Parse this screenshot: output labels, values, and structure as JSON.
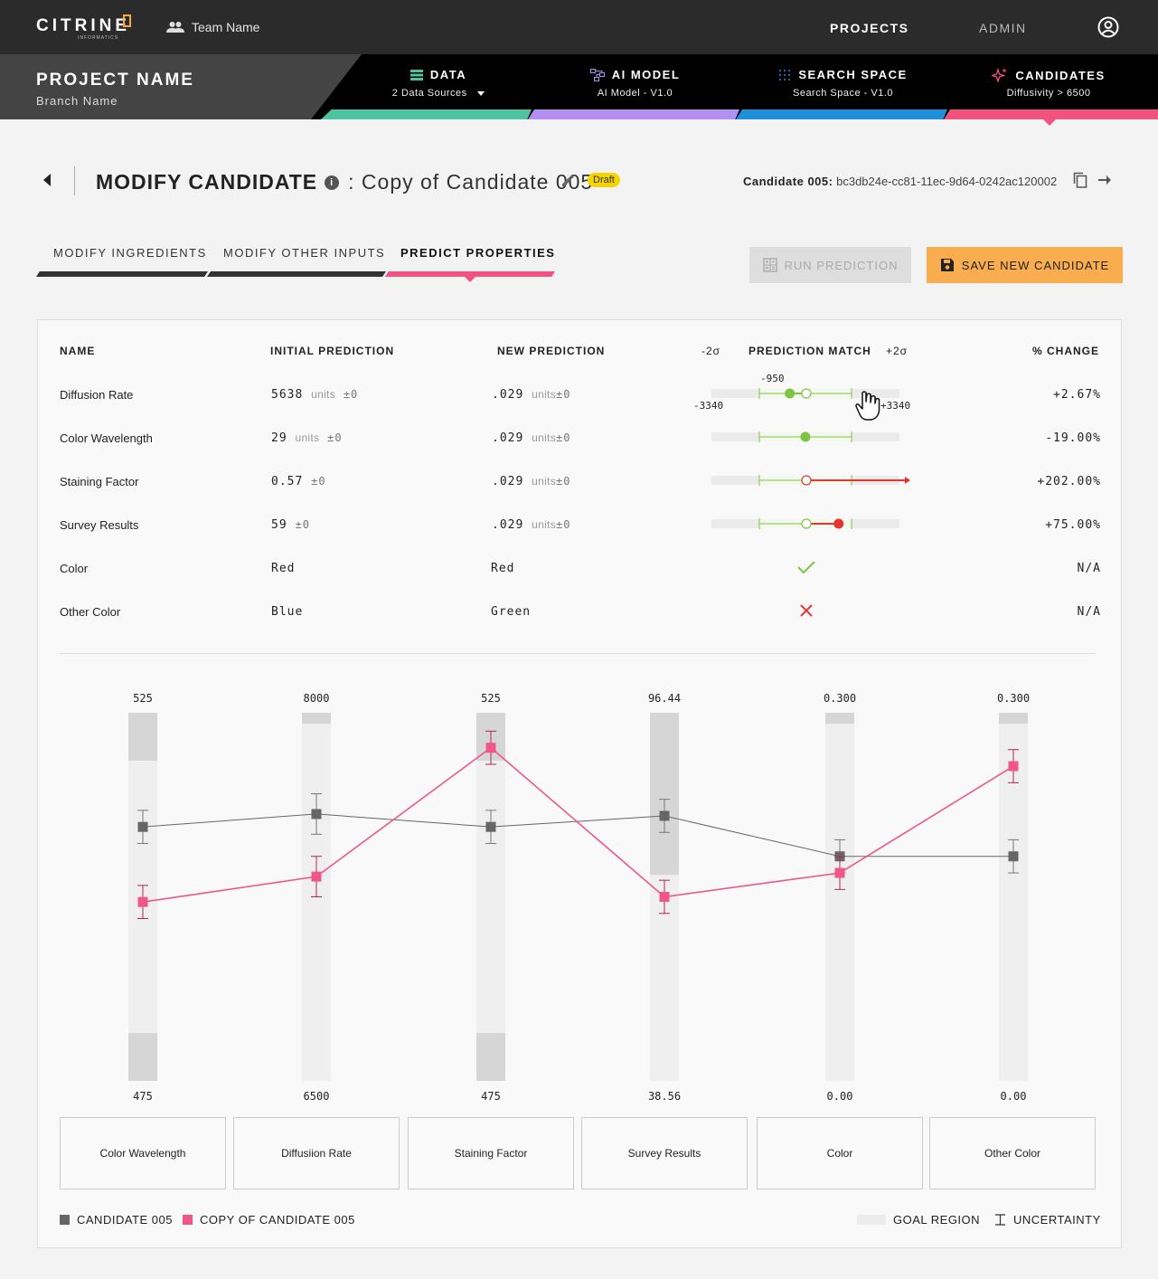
{
  "topbar": {
    "logo": "CITRINE",
    "logo_sub": "INFORMATICS",
    "team": "Team Name",
    "nav_projects": "PROJECTS",
    "nav_admin": "ADMIN",
    "icons": {
      "team": "team-icon",
      "user": "user-icon"
    }
  },
  "project": {
    "name": "PROJECT NAME",
    "branch": "Branch Name"
  },
  "stages": [
    {
      "title": "DATA",
      "subtitle": "2 Data Sources",
      "color": "#4fc3a1",
      "icon": "data-icon"
    },
    {
      "title": "AI MODEL",
      "subtitle": "AI Model - V1.0",
      "color": "#b28ff2",
      "icon": "model-icon"
    },
    {
      "title": "SEARCH SPACE",
      "subtitle": "Search Space - V1.0",
      "color": "#1e90d8",
      "icon": "grid-icon"
    },
    {
      "title": "CANDIDATES",
      "subtitle": "Diffusivity > 6500",
      "color": "#f0537f",
      "icon": "sparkle-icon"
    }
  ],
  "header": {
    "title": "MODIFY CANDIDATE",
    "subtitle": ": Copy of Candidate 005",
    "badge": "Draft",
    "candidate_label": "Candidate 005:",
    "candidate_id": "bc3db24e-cc81-11ec-9d64-0242ac120002"
  },
  "tabs": [
    "MODIFY INGREDIENTS",
    "MODIFY OTHER INPUTS",
    "PREDICT PROPERTIES"
  ],
  "buttons": {
    "run": "RUN PREDICTION",
    "save": "SAVE NEW CANDIDATE"
  },
  "table": {
    "headers": {
      "name": "NAME",
      "initial": "INITIAL PREDICTION",
      "new": "NEW PREDICTION",
      "minus": "-2σ",
      "match": "PREDICTION MATCH",
      "plus": "+2σ",
      "change": "% CHANGE"
    },
    "hover_labels": {
      "mid": "-950",
      "left": "-3340",
      "right": "+3340"
    },
    "rows": [
      {
        "name": "Diffusion Rate",
        "initial": "5638",
        "initial_unit": "units",
        "initial_pm": "±0",
        "new": ".029",
        "new_unit": "units",
        "new_pm": "±0",
        "change": "+2.67%",
        "match": "within",
        "marker": 0.33
      },
      {
        "name": "Color Wavelength",
        "initial": "29",
        "initial_unit": "units",
        "initial_pm": "±0",
        "new": ".029",
        "new_unit": "units",
        "new_pm": "±0",
        "change": "-19.00%",
        "match": "within",
        "marker": 0.5
      },
      {
        "name": "Staining Factor",
        "initial": "0.57",
        "initial_unit": "",
        "initial_pm": "±0",
        "new": ".029",
        "new_unit": "units",
        "new_pm": "±0",
        "change": "+202.00%",
        "match": "over",
        "marker": 1.2
      },
      {
        "name": "Survey Results",
        "initial": "59",
        "initial_unit": "",
        "initial_pm": "±0",
        "new": ".029",
        "new_unit": "units",
        "new_pm": "±0",
        "change": "+75.00%",
        "match": "outside",
        "marker": 0.86
      },
      {
        "name": "Color",
        "initial": "Red",
        "initial_unit": "",
        "initial_pm": "",
        "new": "Red",
        "new_unit": "",
        "new_pm": "",
        "change": "N/A",
        "match": "check",
        "marker": null
      },
      {
        "name": "Other Color",
        "initial": "Blue",
        "initial_unit": "",
        "initial_pm": "",
        "new": "Green",
        "new_unit": "",
        "new_pm": "",
        "change": "N/A",
        "match": "cross",
        "marker": null
      }
    ]
  },
  "chart_data": {
    "type": "line",
    "categories": [
      "Color Wavelength",
      "Diffusiion Rate",
      "Staining Factor",
      "Survey Results",
      "Color",
      "Other Color"
    ],
    "axis_max": [
      "525",
      "8000",
      "525",
      "96.44",
      "0.300",
      "0.300"
    ],
    "axis_min": [
      "475",
      "6500",
      "475",
      "38.56",
      "0.00",
      "0.00"
    ],
    "goal_region": [
      [
        0.13,
        0.87
      ],
      [
        0,
        0.97
      ],
      [
        0.13,
        0.87
      ],
      [
        0,
        0.56
      ],
      [
        0,
        0.97
      ],
      [
        0,
        0.97
      ]
    ],
    "series": [
      {
        "name": "CANDIDATE 005",
        "color": "#666666",
        "values": [
          0.69,
          0.725,
          0.69,
          0.72,
          0.61,
          0.61
        ],
        "errors": [
          0.09,
          0.11,
          0.09,
          0.09,
          0.09,
          0.09
        ]
      },
      {
        "name": "COPY OF CANDIDATE 005",
        "color": "#f0568c",
        "values": [
          0.486,
          0.555,
          0.905,
          0.5,
          0.565,
          0.855
        ],
        "errors": [
          0.09,
          0.11,
          0.09,
          0.09,
          0.09,
          0.09
        ]
      }
    ],
    "legend": {
      "goal": "GOAL REGION",
      "uncertainty": "UNCERTAINTY"
    }
  }
}
